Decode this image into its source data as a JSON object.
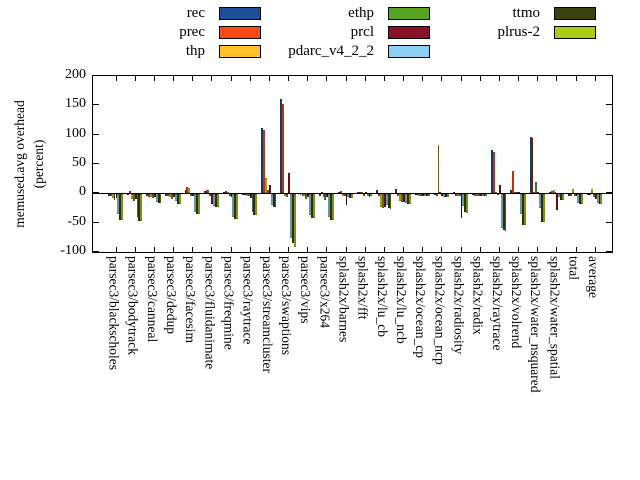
{
  "chart_data": {
    "type": "bar",
    "title": "",
    "ylabel_lines": [
      "memused.avg overhead",
      "(percent)"
    ],
    "ylim": [
      -100,
      200
    ],
    "yticks": [
      200,
      150,
      100,
      50,
      0,
      -50,
      -100
    ],
    "grid": false,
    "legend_position": "top",
    "background": "#ffffff",
    "axis_color": "#000000",
    "categories": [
      "parsec3/blackscholes",
      "parsec3/bodytrack",
      "parsec3/canneal",
      "parsec3/dedup",
      "parsec3/facesim",
      "parsec3/fluidanimate",
      "parsec3/freqmine",
      "parsec3/raytrace",
      "parsec3/streamcluster",
      "parsec3/swaptions",
      "parsec3/vips",
      "parsec3/x264",
      "splash2x/barnes",
      "splash2x/fft",
      "splash2x/lu_cb",
      "splash2x/lu_ncb",
      "splash2x/ocean_cp",
      "splash2x/ocean_ncp",
      "splash2x/radiosity",
      "splash2x/radix",
      "splash2x/raytrace",
      "splash2x/volrend",
      "splash2x/water_nsquared",
      "splash2x/water_spatial",
      "total",
      "average"
    ],
    "series": [
      {
        "name": "rec",
        "color": "#1c4f99",
        "values": [
          -3,
          -1,
          -3,
          -2,
          6,
          4,
          3,
          -1,
          112,
          160,
          -1,
          -2,
          3,
          1,
          5,
          7,
          -1,
          -1,
          1,
          -1,
          74,
          5,
          96,
          3,
          -2,
          -1
        ]
      },
      {
        "name": "prec",
        "color": "#fb4a15",
        "values": [
          -3,
          4,
          -4,
          -2,
          10,
          6,
          4,
          -1,
          108,
          153,
          -2,
          2,
          4,
          3,
          -2,
          -2,
          -1,
          -2,
          -2,
          -2,
          71,
          38,
          94,
          4,
          -2,
          -1
        ]
      },
      {
        "name": "thp",
        "color": "#ffc327",
        "values": [
          -6,
          -8,
          -5,
          -4,
          9,
          5,
          2,
          -2,
          26,
          -2,
          -3,
          -4,
          -2,
          1,
          -22,
          -12,
          -2,
          82,
          -2,
          -2,
          2,
          2,
          3,
          6,
          8,
          8
        ]
      },
      {
        "name": "ethp",
        "color": "#57a322",
        "values": [
          -10,
          -12,
          -6,
          -8,
          -3,
          -3,
          -2,
          -2,
          5,
          -5,
          -8,
          -10,
          -3,
          -2,
          -23,
          -13,
          -2,
          1,
          -3,
          -2,
          -1,
          1,
          19,
          2,
          -3,
          -4
        ]
      },
      {
        "name": "prcl",
        "color": "#891228",
        "values": [
          -6,
          -8,
          -5,
          -4,
          -2,
          -17,
          -5,
          -6,
          15,
          35,
          -5,
          -5,
          -18,
          2,
          -21,
          -13,
          -3,
          -2,
          -41,
          -3,
          14,
          3,
          2,
          -27,
          -3,
          -8
        ]
      },
      {
        "name": "pdarc_v4_2_2",
        "color": "#8dcef5",
        "values": [
          -34,
          -38,
          -13,
          -11,
          -30,
          -20,
          -38,
          -30,
          -19,
          -75,
          -36,
          -38,
          -4,
          -3,
          -18,
          -14,
          -2,
          -5,
          -20,
          -2,
          -58,
          -34,
          -24,
          -5,
          -15,
          -14
        ]
      },
      {
        "name": "ttmo",
        "color": "#3a430e",
        "values": [
          -44,
          -45,
          -15,
          -17,
          -34,
          -21,
          -42,
          -35,
          -21,
          -83,
          -41,
          -44,
          -6,
          -4,
          -24,
          -17,
          -3,
          -5,
          -30,
          -3,
          -61,
          -52,
          -47,
          -9,
          -17,
          -17
        ]
      },
      {
        "name": "plrus-2",
        "color": "#a9cc17",
        "values": [
          -44,
          -45,
          -15,
          -17,
          -34,
          -21,
          -42,
          -35,
          -21,
          -89,
          -41,
          -43,
          -6,
          -3,
          -25,
          -17,
          -3,
          -4,
          -31,
          -3,
          -62,
          -52,
          -47,
          -9,
          -16,
          -17
        ]
      }
    ],
    "legend": {
      "columns": [
        [
          "rec",
          "prec",
          "thp"
        ],
        [
          "ethp",
          "prcl",
          "pdarc_v4_2_2"
        ],
        [
          "ttmo",
          "plrus-2"
        ]
      ]
    }
  }
}
